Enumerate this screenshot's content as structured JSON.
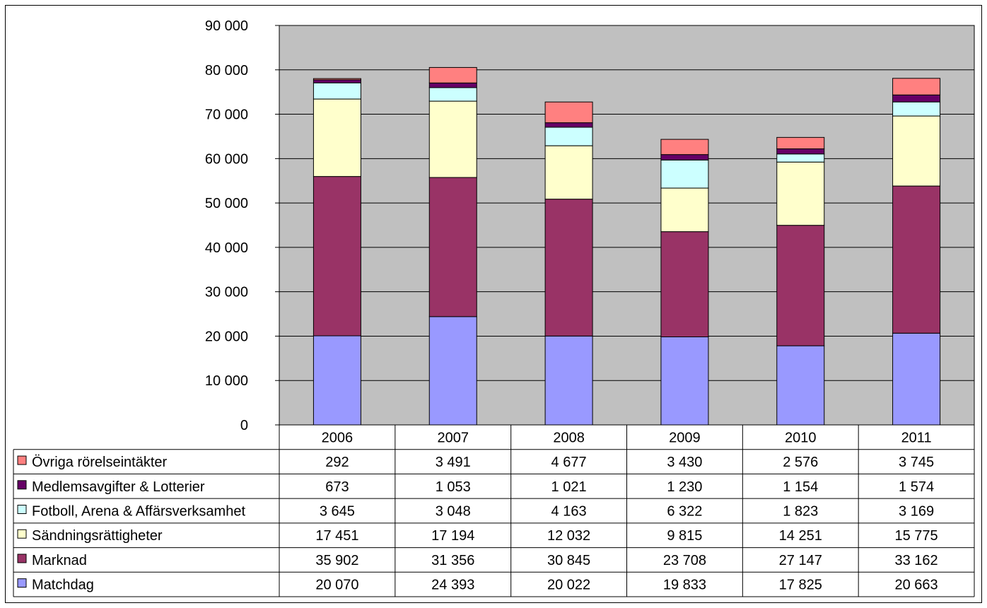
{
  "chart_data": {
    "type": "bar",
    "stacked": true,
    "title": "",
    "xlabel": "",
    "ylabel": "",
    "ylim": [
      0,
      90000
    ],
    "yticks": [
      0,
      10000,
      20000,
      30000,
      40000,
      50000,
      60000,
      70000,
      80000,
      90000
    ],
    "ytick_labels": [
      "0",
      "10 000",
      "20 000",
      "30 000",
      "40 000",
      "50 000",
      "60 000",
      "70 000",
      "80 000",
      "90 000"
    ],
    "grid": true,
    "legend_position": "bottom data table",
    "categories": [
      "2006",
      "2007",
      "2008",
      "2009",
      "2010",
      "2011"
    ],
    "series": [
      {
        "name": "Matchdag",
        "color": "#9999ff",
        "values": [
          20070,
          24393,
          20022,
          19833,
          17825,
          20663
        ],
        "labels": [
          "20 070",
          "24 393",
          "20 022",
          "19 833",
          "17 825",
          "20 663"
        ]
      },
      {
        "name": "Marknad",
        "color": "#993366",
        "values": [
          35902,
          31356,
          30845,
          23708,
          27147,
          33162
        ],
        "labels": [
          "35 902",
          "31 356",
          "30 845",
          "23 708",
          "27 147",
          "33 162"
        ]
      },
      {
        "name": "Sändningsrättigheter",
        "color": "#ffffcc",
        "values": [
          17451,
          17194,
          12032,
          9815,
          14251,
          15775
        ],
        "labels": [
          "17 451",
          "17 194",
          "12 032",
          "9 815",
          "14 251",
          "15 775"
        ]
      },
      {
        "name": "Fotboll, Arena & Affärsverksamhet",
        "color": "#ccffff",
        "values": [
          3645,
          3048,
          4163,
          6322,
          1823,
          3169
        ],
        "labels": [
          "3 645",
          "3 048",
          "4 163",
          "6 322",
          "1 823",
          "3 169"
        ]
      },
      {
        "name": "Medlemsavgifter & Lotterier",
        "color": "#660066",
        "values": [
          673,
          1053,
          1021,
          1230,
          1154,
          1574
        ],
        "labels": [
          "673",
          "1 053",
          "1 021",
          "1 230",
          "1 154",
          "1 574"
        ]
      },
      {
        "name": "Övriga rörelseintäkter",
        "color": "#ff8080",
        "values": [
          292,
          3491,
          4677,
          3430,
          2576,
          3745
        ],
        "labels": [
          "292",
          "3 491",
          "4 677",
          "3 430",
          "2 576",
          "3 745"
        ]
      }
    ],
    "table_row_order": [
      5,
      4,
      3,
      2,
      1,
      0
    ],
    "colors": {
      "plot_background": "#c0c0c0",
      "gridline": "#000000",
      "border": "#000000"
    }
  }
}
